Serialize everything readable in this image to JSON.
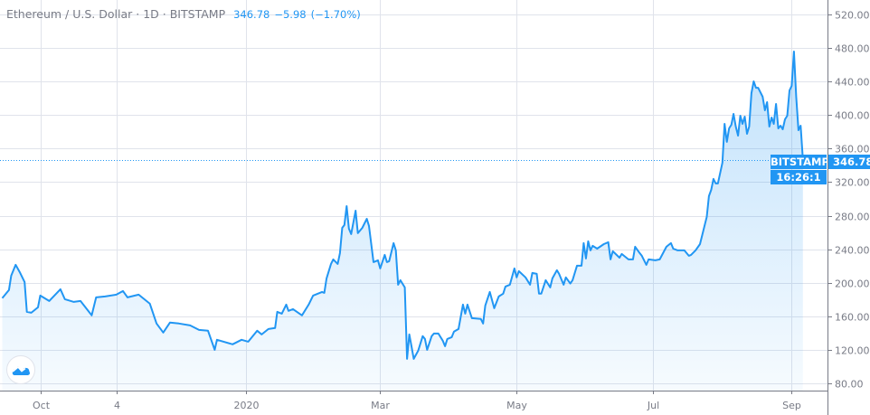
{
  "header": {
    "symbol": "Ethereum / U.S. Dollar",
    "interval": "1D",
    "exchange": "BITSTAMP",
    "separator": "·",
    "last_price": "346.78",
    "change": "−5.98",
    "change_pct": "(−1.70%)"
  },
  "price_tags": {
    "exchange_label": "BITSTAMP",
    "last_price": "346.78",
    "countdown": "16:26:1"
  },
  "logo": {
    "icon": "tradingview-cloud-icon"
  },
  "colors": {
    "line": "#2196f3",
    "grid": "#e0e3eb",
    "text": "#787b86",
    "axis": "#787b86"
  },
  "chart_data": {
    "type": "area",
    "title": "",
    "xlabel": "",
    "ylabel": "",
    "x_range": [
      "2019-09-13",
      "2020-09-17"
    ],
    "ylim": [
      71.3,
      537.3
    ],
    "grid": true,
    "y_ticks": [
      "80.00",
      "120.00",
      "160.00",
      "200.00",
      "240.00",
      "280.00",
      "320.00",
      "360.00",
      "400.00",
      "440.00",
      "480.00",
      "520.00"
    ],
    "x_ticks": [
      {
        "label": "Oct",
        "date": "2019-10-01"
      },
      {
        "label": "4",
        "date": "2019-11-04"
      },
      {
        "label": "2020",
        "date": "2020-01-01"
      },
      {
        "label": "Mar",
        "date": "2020-03-01"
      },
      {
        "label": "May",
        "date": "2020-05-01"
      },
      {
        "label": "Jul",
        "date": "2020-07-01"
      },
      {
        "label": "Sep",
        "date": "2020-09-01"
      }
    ],
    "last_value": 346.78,
    "series": [
      {
        "x": [
          "2019-09-14",
          "2019-09-17",
          "2019-09-18",
          "2019-09-20",
          "2019-09-22",
          "2019-09-24",
          "2019-09-25",
          "2019-09-27",
          "2019-09-30",
          "2019-10-01",
          "2019-10-05",
          "2019-10-10",
          "2019-10-12",
          "2019-10-16",
          "2019-10-19",
          "2019-10-24",
          "2019-10-26",
          "2019-10-30",
          "2019-11-04",
          "2019-11-07",
          "2019-11-09",
          "2019-11-14",
          "2019-11-19",
          "2019-11-22",
          "2019-11-25",
          "2019-11-28",
          "2019-12-02",
          "2019-12-07",
          "2019-12-11",
          "2019-12-15",
          "2019-12-18",
          "2019-12-19",
          "2019-12-26",
          "2019-12-30",
          "2020-01-02",
          "2020-01-06",
          "2020-01-08",
          "2020-01-11",
          "2020-01-14",
          "2020-01-15",
          "2020-01-17",
          "2020-01-19",
          "2020-01-20",
          "2020-01-22",
          "2020-01-26",
          "2020-01-29",
          "2020-01-31",
          "2020-02-04",
          "2020-02-05",
          "2020-02-06",
          "2020-02-08",
          "2020-02-09",
          "2020-02-11",
          "2020-02-12",
          "2020-02-13",
          "2020-02-14",
          "2020-02-15",
          "2020-02-16",
          "2020-02-17",
          "2020-02-19",
          "2020-02-20",
          "2020-02-22",
          "2020-02-24",
          "2020-02-25",
          "2020-02-27",
          "2020-02-29",
          "2020-03-01",
          "2020-03-03",
          "2020-03-04",
          "2020-03-05",
          "2020-03-07",
          "2020-03-08",
          "2020-03-09",
          "2020-03-10",
          "2020-03-12",
          "2020-03-13",
          "2020-03-14",
          "2020-03-15",
          "2020-03-16",
          "2020-03-18",
          "2020-03-20",
          "2020-03-21",
          "2020-03-22",
          "2020-03-24",
          "2020-03-25",
          "2020-03-27",
          "2020-03-29",
          "2020-03-30",
          "2020-03-31",
          "2020-04-02",
          "2020-04-03",
          "2020-04-05",
          "2020-04-07",
          "2020-04-08",
          "2020-04-09",
          "2020-04-11",
          "2020-04-15",
          "2020-04-16",
          "2020-04-17",
          "2020-04-19",
          "2020-04-21",
          "2020-04-23",
          "2020-04-25",
          "2020-04-26",
          "2020-04-28",
          "2020-04-30",
          "2020-05-01",
          "2020-05-02",
          "2020-05-05",
          "2020-05-07",
          "2020-05-08",
          "2020-05-10",
          "2020-05-11",
          "2020-05-12",
          "2020-05-14",
          "2020-05-16",
          "2020-05-17",
          "2020-05-19",
          "2020-05-20",
          "2020-05-22",
          "2020-05-23",
          "2020-05-25",
          "2020-05-26",
          "2020-05-28",
          "2020-05-30",
          "2020-05-31",
          "2020-06-01",
          "2020-06-02",
          "2020-06-03",
          "2020-06-04",
          "2020-06-06",
          "2020-06-09",
          "2020-06-11",
          "2020-06-12",
          "2020-06-13",
          "2020-06-16",
          "2020-06-17",
          "2020-06-20",
          "2020-06-22",
          "2020-06-23",
          "2020-06-25",
          "2020-06-26",
          "2020-06-28",
          "2020-06-29",
          "2020-07-02",
          "2020-07-04",
          "2020-07-07",
          "2020-07-09",
          "2020-07-10",
          "2020-07-12",
          "2020-07-15",
          "2020-07-17",
          "2020-07-18",
          "2020-07-20",
          "2020-07-22",
          "2020-07-24",
          "2020-07-25",
          "2020-07-26",
          "2020-07-27",
          "2020-07-28",
          "2020-07-29",
          "2020-07-30",
          "2020-08-01",
          "2020-08-02",
          "2020-08-03",
          "2020-08-04",
          "2020-08-05",
          "2020-08-06",
          "2020-08-07",
          "2020-08-08",
          "2020-08-09",
          "2020-08-10",
          "2020-08-11",
          "2020-08-12",
          "2020-08-13",
          "2020-08-14",
          "2020-08-15",
          "2020-08-16",
          "2020-08-17",
          "2020-08-19",
          "2020-08-20",
          "2020-08-21",
          "2020-08-22",
          "2020-08-23",
          "2020-08-24",
          "2020-08-25",
          "2020-08-26",
          "2020-08-27",
          "2020-08-28",
          "2020-08-29",
          "2020-08-30",
          "2020-08-31",
          "2020-09-01",
          "2020-09-02",
          "2020-09-03",
          "2020-09-04",
          "2020-09-05",
          "2020-09-06"
        ],
        "y": [
          181.5,
          191.2,
          208.4,
          221.3,
          211.6,
          200.9,
          165.3,
          164.2,
          170.7,
          184.7,
          178.2,
          192.2,
          180.4,
          177.1,
          178.2,
          161.0,
          182.5,
          183.6,
          185.8,
          190.1,
          182.5,
          185.8,
          175.0,
          151.3,
          140.5,
          152.4,
          151.3,
          149.1,
          143.7,
          142.7,
          120.0,
          131.9,
          126.5,
          131.9,
          129.7,
          142.7,
          138.3,
          144.8,
          145.9,
          165.3,
          163.1,
          173.9,
          166.4,
          168.5,
          161.0,
          173.9,
          184.7,
          189.0,
          187.9,
          205.2,
          222.4,
          227.8,
          222.4,
          235.4,
          265.5,
          268.8,
          291.4,
          264.5,
          258.0,
          286.0,
          259.1,
          265.5,
          276.3,
          267.7,
          224.6,
          226.7,
          217.0,
          233.2,
          224.6,
          225.7,
          247.2,
          238.6,
          197.6,
          203.0,
          194.4,
          109.2,
          138.3,
          124.3,
          109.2,
          118.9,
          136.2,
          132.9,
          120.0,
          136.2,
          139.4,
          139.4,
          130.8,
          124.3,
          132.9,
          135.1,
          141.6,
          144.8,
          173.9,
          163.1,
          173.9,
          157.7,
          156.7,
          151.3,
          172.8,
          189.0,
          169.6,
          183.6,
          186.9,
          195.5,
          197.6,
          217.0,
          206.3,
          213.8,
          206.3,
          197.6,
          211.6,
          210.6,
          186.9,
          186.9,
          203.0,
          194.4,
          205.2,
          214.9,
          210.6,
          197.6,
          206.3,
          199.0,
          203.0,
          220.3,
          220.3,
          247.2,
          228.9,
          249.4,
          238.6,
          244.0,
          240.7,
          246.1,
          248.3,
          227.8,
          237.5,
          229.9,
          234.3,
          227.8,
          227.8,
          242.9,
          235.4,
          232.1,
          221.3,
          227.8,
          226.7,
          227.8,
          242.9,
          247.2,
          240.7,
          238.6,
          238.6,
          232.1,
          233.2,
          238.6,
          246.1,
          267.7,
          278.5,
          303.3,
          310.8,
          323.8,
          318.4,
          318.4,
          343.2,
          389.5,
          368.0,
          384.1,
          388.4,
          401.4,
          386.3,
          375.5,
          399.2,
          389.5,
          398.1,
          377.7,
          386.3,
          426.2,
          440.2,
          432.6,
          432.6,
          421.9,
          405.7,
          415.4,
          386.3,
          397.1,
          389.5,
          413.2,
          384.1,
          387.4,
          383.0,
          394.9,
          399.2,
          429.4,
          434.8,
          475.8,
          421.9,
          382.0,
          387.4,
          346.78
        ]
      }
    ]
  }
}
